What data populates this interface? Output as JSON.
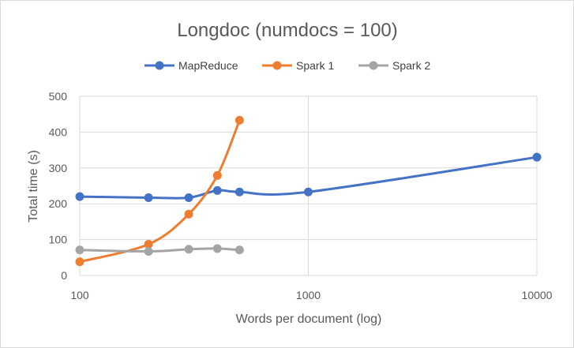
{
  "chart_data": {
    "type": "line",
    "title": "Longdoc (numdocs = 100)",
    "xlabel": "Words per document (log)",
    "ylabel": "Total time (s)",
    "xscale": "log",
    "xlim": [
      100,
      10000
    ],
    "ylim": [
      0,
      500
    ],
    "xticks": [
      100,
      1000,
      10000
    ],
    "xtick_labels": [
      "100",
      "1000",
      "10000"
    ],
    "yticks": [
      0,
      100,
      200,
      300,
      400,
      500
    ],
    "ytick_labels": [
      "0",
      "100",
      "200",
      "300",
      "400",
      "500"
    ],
    "grid": true,
    "legend_position": "top",
    "series": [
      {
        "name": "MapReduce",
        "color": "#4472c4",
        "x": [
          100,
          200,
          300,
          400,
          500,
          1000,
          10000
        ],
        "y": [
          220,
          217,
          217,
          237,
          233,
          233,
          330
        ]
      },
      {
        "name": "Spark 1",
        "color": "#ed7d31",
        "x": [
          100,
          200,
          300,
          400,
          500
        ],
        "y": [
          38,
          87,
          171,
          279,
          433
        ]
      },
      {
        "name": "Spark 2",
        "color": "#a5a5a5",
        "x": [
          100,
          200,
          300,
          400,
          500
        ],
        "y": [
          71,
          67,
          73,
          75,
          71
        ]
      }
    ]
  }
}
